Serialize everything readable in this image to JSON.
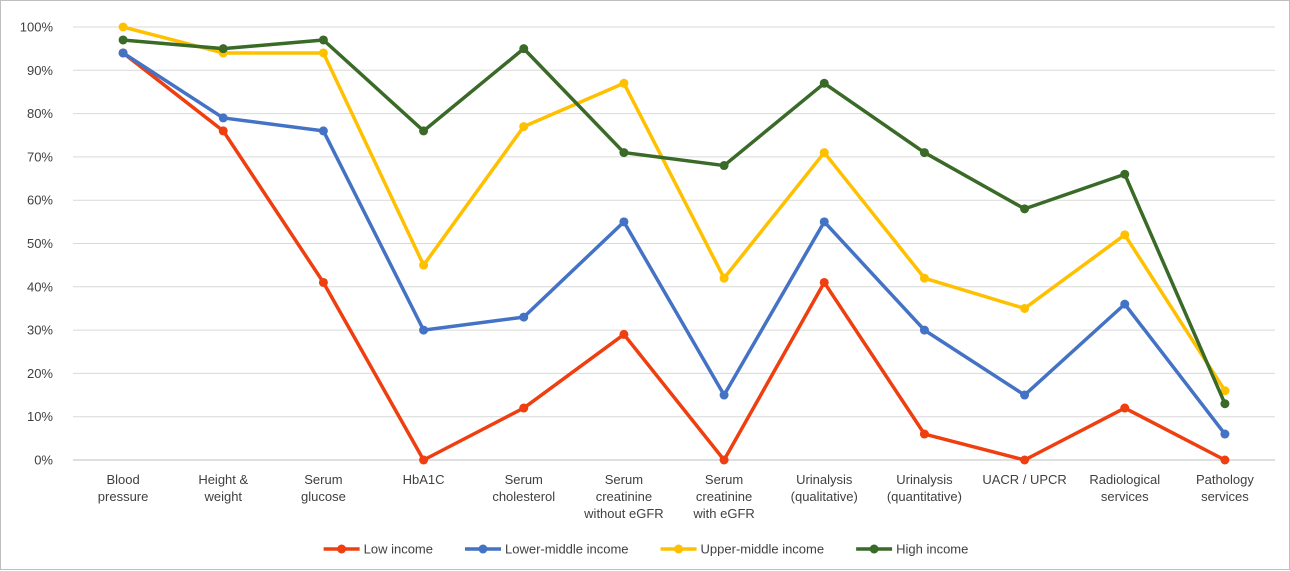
{
  "chart_data": {
    "type": "line",
    "title": "",
    "xlabel": "",
    "ylabel": "",
    "ylim": [
      0,
      100
    ],
    "y_tick_step": 10,
    "y_unit": "%",
    "grid": true,
    "legend_position": "bottom",
    "categories": [
      [
        "Blood",
        "pressure"
      ],
      [
        "Height &",
        "weight"
      ],
      [
        "Serum",
        "glucose"
      ],
      [
        "HbA1C"
      ],
      [
        "Serum",
        "cholesterol"
      ],
      [
        "Serum",
        "creatinine",
        "without eGFR"
      ],
      [
        "Serum",
        "creatinine",
        "with eGFR"
      ],
      [
        "Urinalysis",
        "(qualitative)"
      ],
      [
        "Urinalysis",
        "(quantitative)"
      ],
      [
        "UACR / UPCR"
      ],
      [
        "Radiological",
        "services"
      ],
      [
        "Pathology",
        "services"
      ]
    ],
    "series": [
      {
        "name": "Low income",
        "color": "#ef3e0f",
        "values": [
          94,
          76,
          41,
          0,
          12,
          29,
          0,
          41,
          6,
          0,
          12,
          0
        ]
      },
      {
        "name": "Lower-middle income",
        "color": "#4472c4",
        "values": [
          94,
          79,
          76,
          30,
          33,
          55,
          15,
          55,
          30,
          15,
          36,
          6
        ]
      },
      {
        "name": "Upper-middle income",
        "color": "#ffc000",
        "values": [
          100,
          94,
          94,
          45,
          77,
          87,
          42,
          71,
          42,
          35,
          52,
          16
        ]
      },
      {
        "name": "High income",
        "color": "#3a6a27",
        "values": [
          97,
          95,
          97,
          76,
          95,
          71,
          68,
          87,
          71,
          58,
          66,
          13
        ]
      }
    ]
  }
}
